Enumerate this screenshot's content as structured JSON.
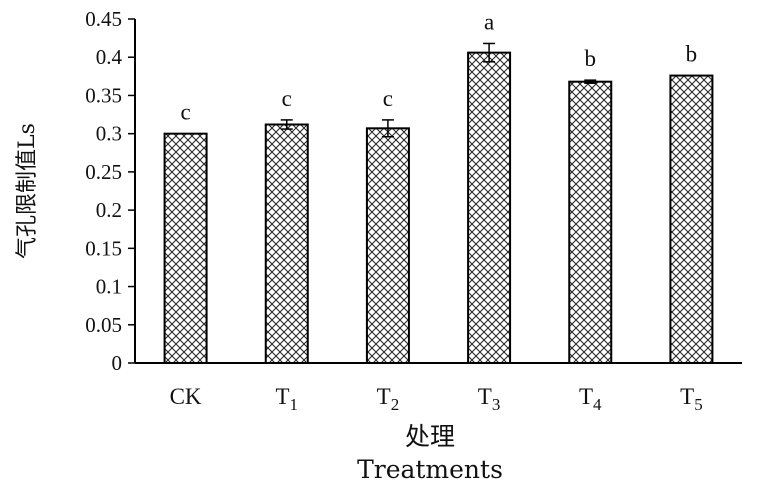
{
  "chart_data": {
    "type": "bar",
    "categories": [
      {
        "base": "CK",
        "sub": ""
      },
      {
        "base": "T",
        "sub": "1"
      },
      {
        "base": "T",
        "sub": "2"
      },
      {
        "base": "T",
        "sub": "3"
      },
      {
        "base": "T",
        "sub": "4"
      },
      {
        "base": "T",
        "sub": "5"
      }
    ],
    "values": [
      0.3,
      0.312,
      0.307,
      0.406,
      0.368,
      0.376
    ],
    "errors": [
      0.0,
      0.006,
      0.011,
      0.012,
      0.002,
      0.0
    ],
    "significance": [
      "c",
      "c",
      "c",
      "a",
      "b",
      "b"
    ],
    "ylim": [
      0,
      0.45
    ],
    "yticks": [
      "0",
      "0.05",
      "0.1",
      "0.15",
      "0.2",
      "0.25",
      "0.3",
      "0.35",
      "0.4",
      "0.45"
    ],
    "ylabel": "气孔限制值Ls",
    "xlabel_cn": "处理",
    "xlabel_en": "Treatments",
    "bar_pattern": "crosshatch",
    "colors": {
      "bar_fill": "#ffffff",
      "bar_stroke": "#000000",
      "hatch": "#222222"
    }
  }
}
